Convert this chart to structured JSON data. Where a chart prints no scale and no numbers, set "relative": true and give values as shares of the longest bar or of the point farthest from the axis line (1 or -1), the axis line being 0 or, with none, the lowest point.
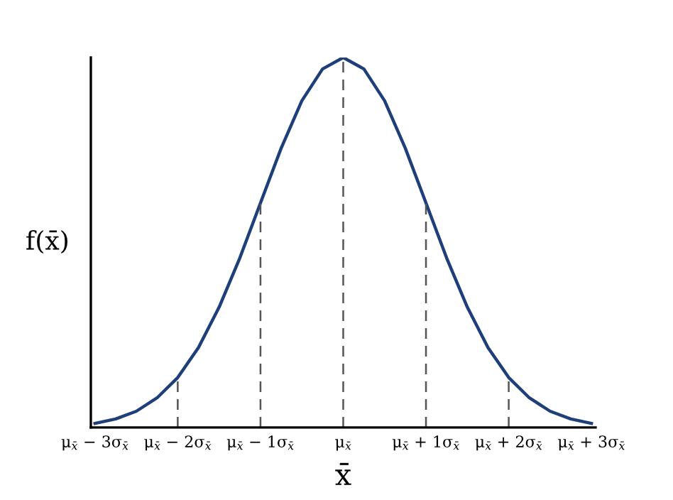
{
  "chart_data": {
    "type": "line",
    "relative": true,
    "xlabel": "x̄",
    "ylabel": "f(x̄)",
    "x": [
      -3,
      -2.75,
      -2.5,
      -2.25,
      -2,
      -1.75,
      -1.5,
      -1.25,
      -1,
      -0.75,
      -0.5,
      -0.25,
      0,
      0.25,
      0.5,
      0.75,
      1,
      1.25,
      1.5,
      1.75,
      2,
      2.25,
      2.5,
      2.75,
      3
    ],
    "series": [
      {
        "color": "#1f3f7a",
        "values": [
          0.011,
          0.023,
          0.044,
          0.08,
          0.135,
          0.216,
          0.325,
          0.458,
          0.607,
          0.755,
          0.883,
          0.969,
          1,
          0.969,
          0.883,
          0.755,
          0.607,
          0.458,
          0.325,
          0.216,
          0.135,
          0.08,
          0.044,
          0.023,
          0.011
        ]
      }
    ],
    "xlim": [
      -3.05,
      3.05
    ],
    "xticks": [
      {
        "value": -3,
        "label": "μ$_{x̄}$ − 3σ$_{x̄}$"
      },
      {
        "value": -2,
        "label": "μ$_{x̄}$ − 2σ$_{x̄}$"
      },
      {
        "value": -1,
        "label": "μ$_{x̄}$ − 1σ$_{x̄}$"
      },
      {
        "value": 0,
        "label": "μ$_{x̄}$"
      },
      {
        "value": 1,
        "label": "μ$_{x̄}$ + 1σ$_{x̄}$"
      },
      {
        "value": 2,
        "label": "μ$_{x̄}$ + 2σ$_{x̄}$"
      },
      {
        "value": 3,
        "label": "μ$_{x̄}$ + 3σ$_{x̄}$"
      }
    ],
    "ref_lines": [
      {
        "axis": "x",
        "value": -2,
        "color": "#555555",
        "line_style": "dashed"
      },
      {
        "axis": "x",
        "value": -1,
        "color": "#555555",
        "line_style": "dashed"
      },
      {
        "axis": "x",
        "value": 0,
        "color": "#555555",
        "line_style": "dashed"
      },
      {
        "axis": "x",
        "value": 1,
        "color": "#555555",
        "line_style": "dashed"
      },
      {
        "axis": "x",
        "value": 2,
        "color": "#555555",
        "line_style": "dashed"
      }
    ],
    "marker": "none",
    "line_style": "solid"
  }
}
